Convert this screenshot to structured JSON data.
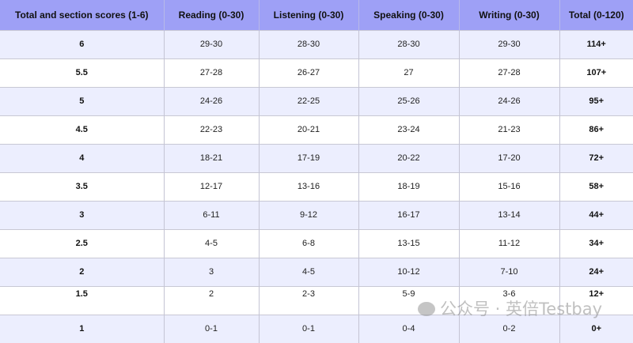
{
  "headers": [
    "Total and section scores (1-6)",
    "Reading (0-30)",
    "Listening (0-30)",
    "Speaking (0-30)",
    "Writing (0-30)",
    "Total (0-120)"
  ],
  "rows": [
    [
      "6",
      "29-30",
      "28-30",
      "28-30",
      "29-30",
      "114+"
    ],
    [
      "5.5",
      "27-28",
      "26-27",
      "27",
      "27-28",
      "107+"
    ],
    [
      "5",
      "24-26",
      "22-25",
      "25-26",
      "24-26",
      "95+"
    ],
    [
      "4.5",
      "22-23",
      "20-21",
      "23-24",
      "21-23",
      "86+"
    ],
    [
      "4",
      "18-21",
      "17-19",
      "20-22",
      "17-20",
      "72+"
    ],
    [
      "3.5",
      "12-17",
      "13-16",
      "18-19",
      "15-16",
      "58+"
    ],
    [
      "3",
      "6-11",
      "9-12",
      "16-17",
      "13-14",
      "44+"
    ],
    [
      "2.5",
      "4-5",
      "6-8",
      "13-15",
      "11-12",
      "34+"
    ],
    [
      "2",
      "3",
      "4-5",
      "10-12",
      "7-10",
      "24+"
    ],
    [
      "1.5",
      "2",
      "2-3",
      "5-9",
      "3-6",
      "12+"
    ],
    [
      "1",
      "0-1",
      "0-1",
      "0-4",
      "0-2",
      "0+"
    ]
  ],
  "watermark": "公众号 · 英倍Testbay",
  "colors": {
    "header": "#9ea0f6",
    "row_alt": "#eceefe"
  }
}
